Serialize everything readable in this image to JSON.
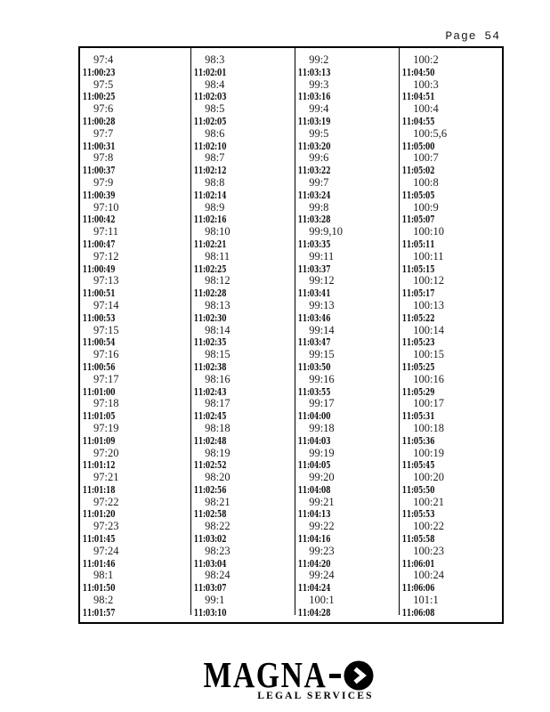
{
  "page_header": {
    "label": "Page 54"
  },
  "table": {
    "description": "transcript page:line to timestamp index",
    "columns": [
      {
        "entries": [
          {
            "ref": "97:4",
            "time": "11:00:23"
          },
          {
            "ref": "97:5",
            "time": "11:00:25"
          },
          {
            "ref": "97:6",
            "time": "11:00:28"
          },
          {
            "ref": "97:7",
            "time": "11:00:31"
          },
          {
            "ref": "97:8",
            "time": "11:00:37"
          },
          {
            "ref": "97:9",
            "time": "11:00:39"
          },
          {
            "ref": "97:10",
            "time": "11:00:42"
          },
          {
            "ref": "97:11",
            "time": "11:00:47"
          },
          {
            "ref": "97:12",
            "time": "11:00:49"
          },
          {
            "ref": "97:13",
            "time": "11:00:51"
          },
          {
            "ref": "97:14",
            "time": "11:00:53"
          },
          {
            "ref": "97:15",
            "time": "11:00:54"
          },
          {
            "ref": "97:16",
            "time": "11:00:56"
          },
          {
            "ref": "97:17",
            "time": "11:01:00"
          },
          {
            "ref": "97:18",
            "time": "11:01:05"
          },
          {
            "ref": "97:19",
            "time": "11:01:09"
          },
          {
            "ref": "97:20",
            "time": "11:01:12"
          },
          {
            "ref": "97:21",
            "time": "11:01:18"
          },
          {
            "ref": "97:22",
            "time": "11:01:20"
          },
          {
            "ref": "97:23",
            "time": "11:01:45"
          },
          {
            "ref": "97:24",
            "time": "11:01:46"
          },
          {
            "ref": "98:1",
            "time": "11:01:50"
          },
          {
            "ref": "98:2",
            "time": "11:01:57"
          }
        ]
      },
      {
        "entries": [
          {
            "ref": "98:3",
            "time": "11:02:01"
          },
          {
            "ref": "98:4",
            "time": "11:02:03"
          },
          {
            "ref": "98:5",
            "time": "11:02:05"
          },
          {
            "ref": "98:6",
            "time": "11:02:10"
          },
          {
            "ref": "98:7",
            "time": "11:02:12"
          },
          {
            "ref": "98:8",
            "time": "11:02:14"
          },
          {
            "ref": "98:9",
            "time": "11:02:16"
          },
          {
            "ref": "98:10",
            "time": "11:02:21"
          },
          {
            "ref": "98:11",
            "time": "11:02:25"
          },
          {
            "ref": "98:12",
            "time": "11:02:28"
          },
          {
            "ref": "98:13",
            "time": "11:02:30"
          },
          {
            "ref": "98:14",
            "time": "11:02:35"
          },
          {
            "ref": "98:15",
            "time": "11:02:38"
          },
          {
            "ref": "98:16",
            "time": "11:02:43"
          },
          {
            "ref": "98:17",
            "time": "11:02:45"
          },
          {
            "ref": "98:18",
            "time": "11:02:48"
          },
          {
            "ref": "98:19",
            "time": "11:02:52"
          },
          {
            "ref": "98:20",
            "time": "11:02:56"
          },
          {
            "ref": "98:21",
            "time": "11:02:58"
          },
          {
            "ref": "98:22",
            "time": "11:03:02"
          },
          {
            "ref": "98:23",
            "time": "11:03:04"
          },
          {
            "ref": "98:24",
            "time": "11:03:07"
          },
          {
            "ref": "99:1",
            "time": "11:03:10"
          }
        ]
      },
      {
        "entries": [
          {
            "ref": "99:2",
            "time": "11:03:13"
          },
          {
            "ref": "99:3",
            "time": "11:03:16"
          },
          {
            "ref": "99:4",
            "time": "11:03:19"
          },
          {
            "ref": "99:5",
            "time": "11:03:20"
          },
          {
            "ref": "99:6",
            "time": "11:03:22"
          },
          {
            "ref": "99:7",
            "time": "11:03:24"
          },
          {
            "ref": "99:8",
            "time": "11:03:28"
          },
          {
            "ref": "99:9,10",
            "time": "11:03:35"
          },
          {
            "ref": "99:11",
            "time": "11:03:37"
          },
          {
            "ref": "99:12",
            "time": "11:03:41"
          },
          {
            "ref": "99:13",
            "time": "11:03:46"
          },
          {
            "ref": "99:14",
            "time": "11:03:47"
          },
          {
            "ref": "99:15",
            "time": "11:03:50"
          },
          {
            "ref": "99:16",
            "time": "11:03:55"
          },
          {
            "ref": "99:17",
            "time": "11:04:00"
          },
          {
            "ref": "99:18",
            "time": "11:04:03"
          },
          {
            "ref": "99:19",
            "time": "11:04:05"
          },
          {
            "ref": "99:20",
            "time": "11:04:08"
          },
          {
            "ref": "99:21",
            "time": "11:04:13"
          },
          {
            "ref": "99:22",
            "time": "11:04:16"
          },
          {
            "ref": "99:23",
            "time": "11:04:20"
          },
          {
            "ref": "99:24",
            "time": "11:04:24"
          },
          {
            "ref": "100:1",
            "time": "11:04:28"
          }
        ]
      },
      {
        "entries": [
          {
            "ref": "100:2",
            "time": "11:04:50"
          },
          {
            "ref": "100:3",
            "time": "11:04:51"
          },
          {
            "ref": "100:4",
            "time": "11:04:55"
          },
          {
            "ref": "100:5,6",
            "time": "11:05:00"
          },
          {
            "ref": "100:7",
            "time": "11:05:02"
          },
          {
            "ref": "100:8",
            "time": "11:05:05"
          },
          {
            "ref": "100:9",
            "time": "11:05:07"
          },
          {
            "ref": "100:10",
            "time": "11:05:11"
          },
          {
            "ref": "100:11",
            "time": "11:05:15"
          },
          {
            "ref": "100:12",
            "time": "11:05:17"
          },
          {
            "ref": "100:13",
            "time": "11:05:22"
          },
          {
            "ref": "100:14",
            "time": "11:05:23"
          },
          {
            "ref": "100:15",
            "time": "11:05:25"
          },
          {
            "ref": "100:16",
            "time": "11:05:29"
          },
          {
            "ref": "100:17",
            "time": "11:05:31"
          },
          {
            "ref": "100:18",
            "time": "11:05:36"
          },
          {
            "ref": "100:19",
            "time": "11:05:45"
          },
          {
            "ref": "100:20",
            "time": "11:05:50"
          },
          {
            "ref": "100:21",
            "time": "11:05:53"
          },
          {
            "ref": "100:22",
            "time": "11:05:58"
          },
          {
            "ref": "100:23",
            "time": "11:06:01"
          },
          {
            "ref": "100:24",
            "time": "11:06:06"
          },
          {
            "ref": "101:1",
            "time": "11:06:08"
          }
        ]
      }
    ]
  },
  "footer_logo": {
    "brand": "MAGNA",
    "tagline": "LEGAL SERVICES",
    "chevron_icon": "chevron-right",
    "colors": {
      "ink": "#111111",
      "logo": "#000000",
      "border": "#000000",
      "background": "#ffffff"
    }
  }
}
